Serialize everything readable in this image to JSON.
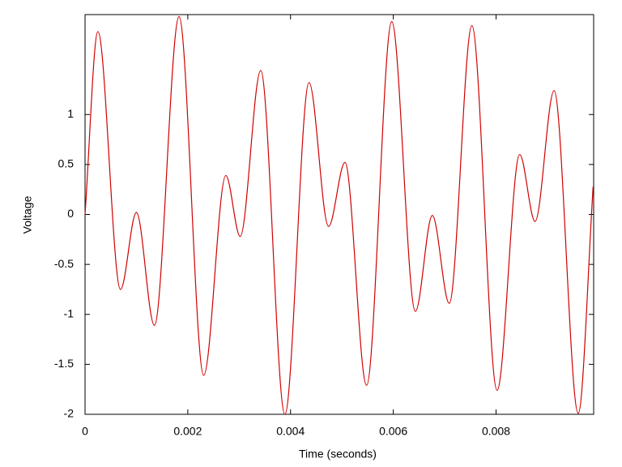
{
  "chart_data": {
    "type": "line",
    "xlabel": "Time (seconds)",
    "ylabel": "Voltage",
    "x": [
      0,
      0.00025,
      0.00069,
      0.001,
      0.00135,
      0.00183,
      0.00231,
      0.00274,
      0.00302,
      0.00342,
      0.00389,
      0.00436,
      0.00474,
      0.00506,
      0.00548,
      0.00597,
      0.00643,
      0.00676,
      0.00709,
      0.00753,
      0.00802,
      0.00846,
      0.00876,
      0.00913,
      0.0096,
      0.00989
    ],
    "values": [
      0,
      1.83,
      -0.75,
      0.02,
      -1.11,
      1.98,
      -1.61,
      0.39,
      -0.22,
      1.44,
      -2.0,
      1.32,
      -0.12,
      0.52,
      -1.71,
      1.93,
      -0.97,
      -0.01,
      -0.89,
      1.89,
      -1.76,
      0.6,
      -0.07,
      1.24,
      -1.99,
      0.28
    ],
    "color": "#d00000",
    "xlim": [
      0,
      0.0099
    ],
    "xticks": [
      0,
      0.002,
      0.004,
      0.006,
      0.008
    ],
    "ylim": [
      -2,
      2
    ],
    "yticks": [
      -2,
      -1.5,
      -1,
      -0.5,
      0,
      0.5,
      1
    ]
  }
}
